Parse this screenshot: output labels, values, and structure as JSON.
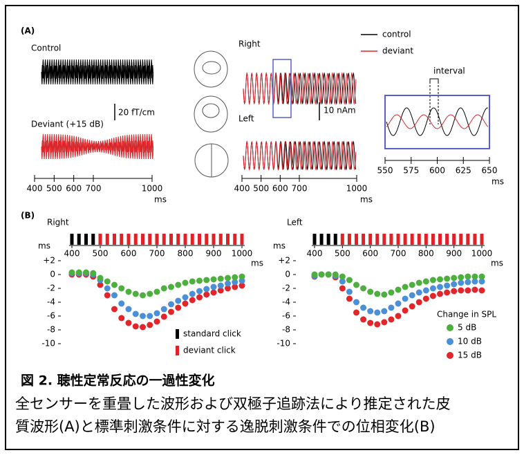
{
  "figure": {
    "panel_a": {
      "label": "(A)",
      "control_label": "Control",
      "deviant_label": "Deviant (+15 dB)",
      "sensor_scale": "20 fT/cm",
      "right_label": "Right",
      "left_label": "Left",
      "source_scale": "10 nAm",
      "legend": [
        {
          "name": "control",
          "color": "#000000"
        },
        {
          "name": "deviant",
          "color": "#d8262a"
        }
      ],
      "interval_label": "interval",
      "time_unit": "ms",
      "time_xlim": [
        400,
        1000
      ],
      "time_ticks": [
        400,
        500,
        600,
        700,
        1000
      ],
      "zoom_xlim": [
        550,
        650
      ],
      "zoom_ticks": [
        550,
        575,
        600,
        625,
        650
      ]
    },
    "panel_b": {
      "label": "(B)",
      "y_unit": "ms",
      "x_unit": "ms",
      "xlim": [
        400,
        1000
      ],
      "ylim": [
        -10,
        2
      ],
      "xticks": [
        400,
        500,
        600,
        700,
        800,
        900,
        1000
      ],
      "yticks": [
        {
          "value": 2,
          "label": "+2"
        },
        0,
        -2,
        -4,
        -6,
        -8,
        -10
      ],
      "standard_clicks": [
        400,
        425,
        450,
        475
      ],
      "deviant_clicks": [
        500,
        525,
        550,
        575,
        600,
        625,
        650,
        675,
        700,
        725,
        750,
        775,
        800,
        825,
        850,
        875,
        900,
        925,
        950,
        975,
        1000
      ],
      "click_legend": [
        {
          "name": "standard click",
          "color": "#000000"
        },
        {
          "name": "deviant click",
          "color": "#e02226"
        }
      ],
      "spl_legend_title": "Change in SPL",
      "x": [
        400,
        425,
        450,
        475,
        500,
        525,
        550,
        575,
        600,
        625,
        650,
        675,
        700,
        725,
        750,
        775,
        800,
        825,
        850,
        875,
        900,
        925,
        950,
        975,
        1000
      ],
      "charts": [
        {
          "title": "Right",
          "series": [
            {
              "name": "5 dB",
              "color": "#4caf3e",
              "values": [
                0.3,
                0.3,
                0.3,
                0.2,
                -0.5,
                -1,
                -1.5,
                -2,
                -2.5,
                -2.8,
                -3,
                -2.8,
                -2.5,
                -2,
                -1.8,
                -1.5,
                -1.2,
                -1,
                -0.9,
                -0.8,
                -0.7,
                -0.6,
                -0.5,
                -0.4,
                -0.3
              ]
            },
            {
              "name": "10 dB",
              "color": "#4a8fd8",
              "values": [
                0.2,
                0.2,
                0.2,
                0,
                -0.8,
                -2,
                -3,
                -4.2,
                -5,
                -5.7,
                -6,
                -6,
                -5.6,
                -5,
                -4.3,
                -3.8,
                -3.3,
                -2.8,
                -2.4,
                -2.1,
                -1.8,
                -1.6,
                -1.3,
                -1.1,
                -0.9
              ]
            },
            {
              "name": "15 dB",
              "color": "#e2252b",
              "values": [
                0,
                0,
                0,
                -0.3,
                -1.5,
                -3,
                -5,
                -6.3,
                -7,
                -7.5,
                -7.6,
                -7.3,
                -6.8,
                -6.1,
                -5.4,
                -4.8,
                -4.2,
                -3.7,
                -3.3,
                -2.9,
                -2.6,
                -2.3,
                -2,
                -1.8,
                -1.6
              ]
            }
          ]
        },
        {
          "title": "Left",
          "series": [
            {
              "name": "5 dB",
              "color": "#4caf3e",
              "values": [
                0,
                0,
                0,
                0,
                -0.3,
                -0.8,
                -1.5,
                -2,
                -2.5,
                -2.8,
                -2.9,
                -2.6,
                -2.2,
                -1.8,
                -1.5,
                -1.2,
                -1,
                -0.8,
                -0.7,
                -0.6,
                -0.5,
                -0.4,
                -0.3,
                -0.3,
                -0.3
              ]
            },
            {
              "name": "10 dB",
              "color": "#4a8fd8",
              "values": [
                -0.2,
                0,
                0,
                -0.2,
                -1,
                -2.5,
                -4,
                -4.8,
                -5.3,
                -5.5,
                -5.3,
                -4.8,
                -4.2,
                -3.5,
                -3,
                -2.6,
                -2.3,
                -2,
                -1.8,
                -1.6,
                -1.4,
                -1.2,
                -1.1,
                -1,
                -1
              ]
            },
            {
              "name": "15 dB",
              "color": "#e2252b",
              "values": [
                -0.3,
                0,
                0,
                -0.4,
                -2,
                -3.5,
                -5.5,
                -6.5,
                -7,
                -7.2,
                -6.9,
                -6.5,
                -6,
                -5.2,
                -4.6,
                -4,
                -3.5,
                -3.1,
                -2.8,
                -2.6,
                -2.4,
                -2.3,
                -2.3,
                -2.2,
                -2.3
              ]
            }
          ]
        }
      ]
    }
  },
  "caption": {
    "title": "図 2. 聴性定常反応の一過性変化",
    "lines": [
      "全センサーを重畳した波形および双極子追跡法により推定された皮",
      "質波形(A)と標準刺激条件に対する逸脱刺激条件での位相変化(B)"
    ]
  }
}
